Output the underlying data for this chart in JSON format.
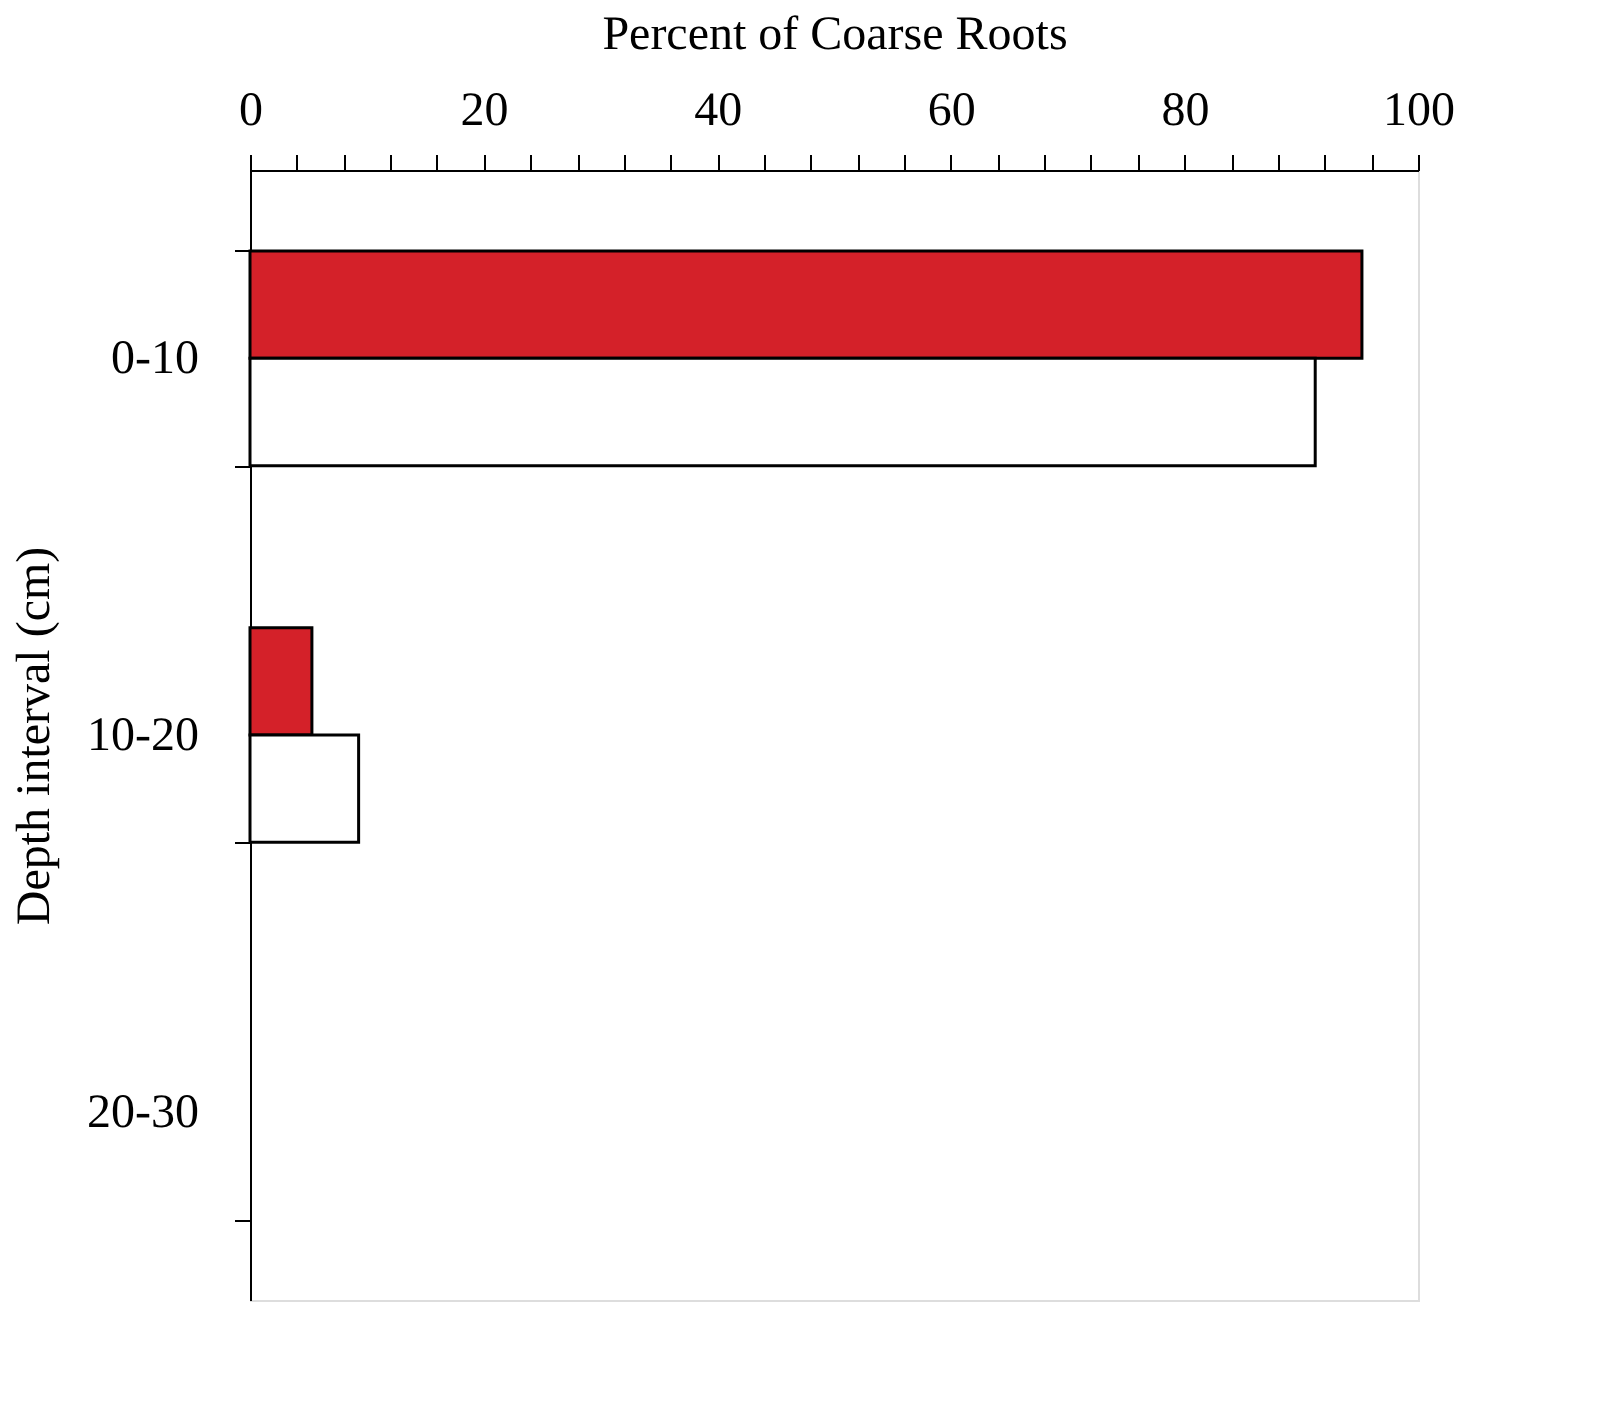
{
  "chart_data": {
    "type": "bar",
    "orientation": "horizontal",
    "xlabel": "Percent of Coarse Roots",
    "ylabel": "Depth interval (cm)",
    "categories": [
      "0-10",
      "10-20",
      "20-30"
    ],
    "series": [
      {
        "color": "#d42129",
        "values": [
          95.2,
          5.3,
          null
        ]
      },
      {
        "color": "#ffffff",
        "values": [
          91.2,
          9.3,
          null
        ]
      }
    ],
    "xlim": [
      0,
      100
    ],
    "xticks": [
      0,
      {
        "value": 4,
        "label": null
      },
      {
        "value": 8,
        "label": null
      },
      {
        "value": 12,
        "label": null
      },
      {
        "value": 16,
        "label": null
      },
      20,
      {
        "value": 24,
        "label": null
      },
      {
        "value": 28,
        "label": null
      },
      {
        "value": 32,
        "label": null
      },
      {
        "value": 36,
        "label": null
      },
      40,
      {
        "value": 44,
        "label": null
      },
      {
        "value": 48,
        "label": null
      },
      {
        "value": 52,
        "label": null
      },
      {
        "value": 56,
        "label": null
      },
      60,
      {
        "value": 64,
        "label": null
      },
      {
        "value": 68,
        "label": null
      },
      {
        "value": 72,
        "label": null
      },
      {
        "value": 76,
        "label": null
      },
      80,
      {
        "value": 84,
        "label": null
      },
      {
        "value": 88,
        "label": null
      },
      {
        "value": 92,
        "label": null
      },
      {
        "value": 96,
        "label": null
      },
      100
    ],
    "grid": false,
    "legend": false
  }
}
